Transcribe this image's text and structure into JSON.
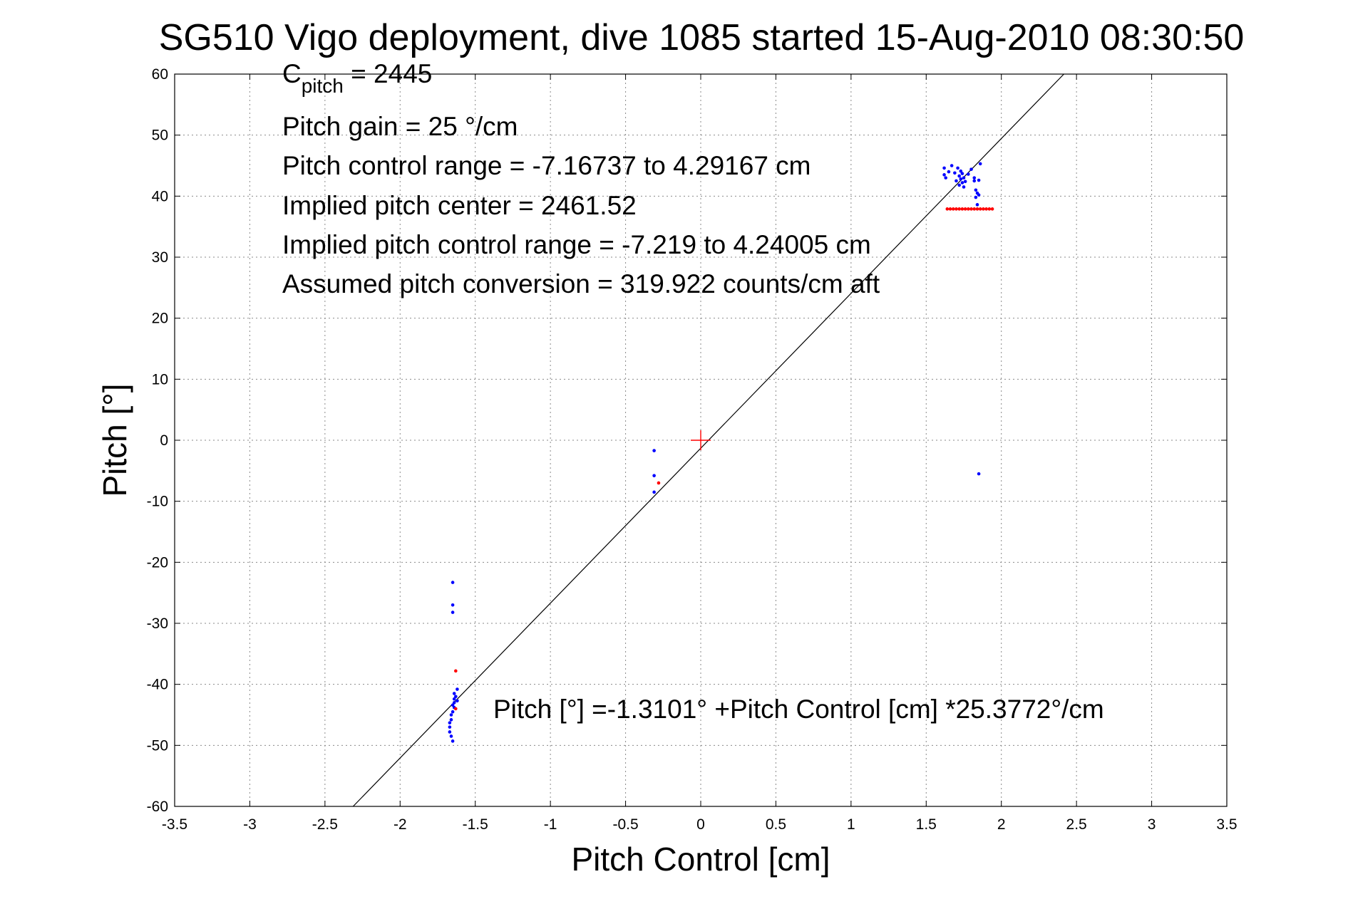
{
  "chart_data": {
    "type": "scatter",
    "title": "SG510 Vigo deployment, dive 1085 started 15-Aug-2010 08:30:50",
    "xlabel": "Pitch Control [cm]",
    "ylabel": "Pitch [°]",
    "xlim": [
      -3.5,
      3.5
    ],
    "ylim": [
      -60,
      60
    ],
    "x_ticks": [
      -3.5,
      -3,
      -2.5,
      -2,
      -1.5,
      -1,
      -0.5,
      0,
      0.5,
      1,
      1.5,
      2,
      2.5,
      3,
      3.5
    ],
    "x_tick_labels": [
      "-3.5",
      "-3",
      "-2.5",
      "-2",
      "-1.5",
      "-1",
      "-0.5",
      "0",
      "0.5",
      "1",
      "1.5",
      "2",
      "2.5",
      "3",
      "3.5"
    ],
    "y_ticks": [
      -60,
      -50,
      -40,
      -30,
      -20,
      -10,
      0,
      10,
      20,
      30,
      40,
      50,
      60
    ],
    "y_tick_labels": [
      "-60",
      "-50",
      "-40",
      "-30",
      "-20",
      "-10",
      "0",
      "10",
      "20",
      "30",
      "40",
      "50",
      "60"
    ],
    "grid": true,
    "annotations": {
      "c_pitch_base": "C",
      "c_pitch_sub": "pitch",
      "c_pitch_value": " = 2445",
      "pitch_gain": "Pitch gain = 25 °/cm",
      "pitch_control_range": "Pitch control range = -7.16737 to 4.29167 cm",
      "implied_center": "Implied pitch center = 2461.52",
      "implied_range": "Implied pitch control range = -7.219 to 4.24005 cm",
      "assumed_conversion": "Assumed pitch conversion = 319.922 counts/cm aft",
      "fit_equation": "Pitch [°] =-1.3101° +Pitch Control [cm] *25.3772°/cm"
    },
    "fit_line": {
      "intercept": -1.3101,
      "slope": 25.3772,
      "color": "#000000"
    },
    "center_marker": {
      "x": 0,
      "y": 0,
      "color": "#ff0000"
    },
    "series": [
      {
        "color": "#0000ff",
        "points": [
          [
            -1.65,
            -23.3
          ],
          [
            -1.65,
            -27.0
          ],
          [
            -1.65,
            -28.2
          ],
          [
            -1.64,
            -41.5
          ],
          [
            -1.63,
            -42.0
          ],
          [
            -1.62,
            -40.8
          ],
          [
            -1.62,
            -42.7
          ],
          [
            -1.64,
            -43.0
          ],
          [
            -1.64,
            -43.8
          ],
          [
            -1.65,
            -44.5
          ],
          [
            -1.66,
            -45.0
          ],
          [
            -1.66,
            -45.8
          ],
          [
            -1.67,
            -46.3
          ],
          [
            -1.67,
            -47.0
          ],
          [
            -1.67,
            -47.8
          ],
          [
            -1.66,
            -48.5
          ],
          [
            -1.65,
            -49.3
          ],
          [
            -1.64,
            -42.4
          ],
          [
            -1.65,
            -43.4
          ],
          [
            -0.31,
            -1.7
          ],
          [
            -0.31,
            -5.8
          ],
          [
            -0.31,
            -8.5
          ],
          [
            1.62,
            43.5
          ],
          [
            1.62,
            44.6
          ],
          [
            1.63,
            43.0
          ],
          [
            1.65,
            44.0
          ],
          [
            1.67,
            45.0
          ],
          [
            1.69,
            43.8
          ],
          [
            1.7,
            42.5
          ],
          [
            1.71,
            44.6
          ],
          [
            1.72,
            43.3
          ],
          [
            1.72,
            41.8
          ],
          [
            1.73,
            44.1
          ],
          [
            1.73,
            42.8
          ],
          [
            1.74,
            43.7
          ],
          [
            1.74,
            42.2
          ],
          [
            1.75,
            41.5
          ],
          [
            1.75,
            43.0
          ],
          [
            1.76,
            42.4
          ],
          [
            1.78,
            43.6
          ],
          [
            1.8,
            44.4
          ],
          [
            1.82,
            43.0
          ],
          [
            1.82,
            42.5
          ],
          [
            1.83,
            41.0
          ],
          [
            1.83,
            39.8
          ],
          [
            1.84,
            40.5
          ],
          [
            1.84,
            38.6
          ],
          [
            1.85,
            40.2
          ],
          [
            1.85,
            42.6
          ],
          [
            1.86,
            45.3
          ],
          [
            1.85,
            -5.5
          ]
        ]
      },
      {
        "color": "#ff0000",
        "points": [
          [
            -1.63,
            -37.8
          ],
          [
            -1.63,
            -44.0
          ],
          [
            -0.28,
            -7.0
          ],
          [
            1.64,
            37.9
          ],
          [
            1.66,
            37.9
          ],
          [
            1.68,
            37.9
          ],
          [
            1.7,
            37.9
          ],
          [
            1.72,
            37.9
          ],
          [
            1.74,
            37.9
          ],
          [
            1.76,
            37.9
          ],
          [
            1.78,
            37.9
          ],
          [
            1.8,
            37.9
          ],
          [
            1.82,
            37.9
          ],
          [
            1.84,
            37.9
          ],
          [
            1.86,
            37.9
          ],
          [
            1.88,
            37.9
          ],
          [
            1.9,
            37.9
          ],
          [
            1.92,
            37.9
          ],
          [
            1.94,
            37.9
          ]
        ]
      }
    ]
  }
}
